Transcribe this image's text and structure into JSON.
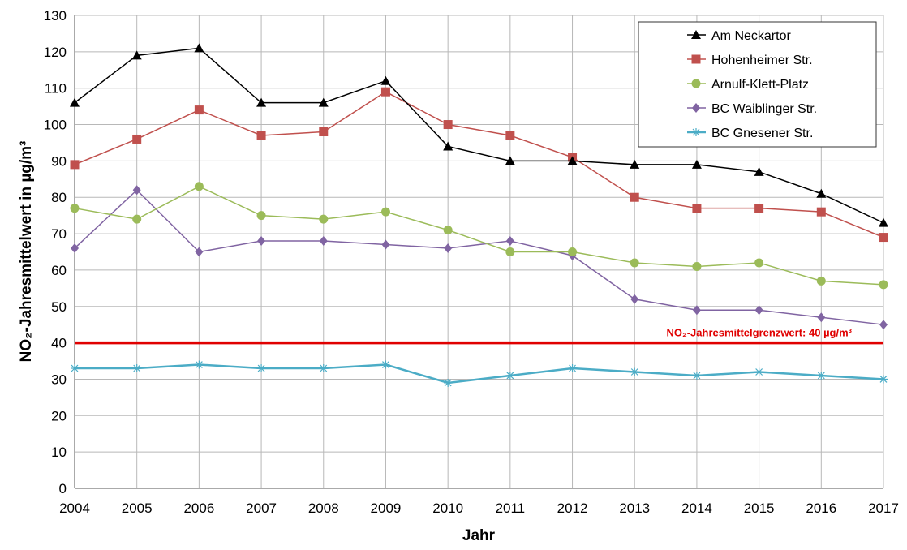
{
  "chart_data": {
    "type": "line",
    "title": "",
    "xlabel": "Jahr",
    "ylabel": "NO₂-Jahresmittelwert  in µg/m³",
    "x": [
      2004,
      2005,
      2006,
      2007,
      2008,
      2009,
      2010,
      2011,
      2012,
      2013,
      2014,
      2015,
      2016,
      2017
    ],
    "ylim": [
      0,
      130
    ],
    "yticks": [
      0,
      10,
      20,
      30,
      40,
      50,
      60,
      70,
      80,
      90,
      100,
      110,
      120,
      130
    ],
    "grid": true,
    "legend_position": "top-right",
    "series": [
      {
        "name": "Am Neckartor",
        "color": "#000000",
        "marker": "triangle",
        "values": [
          106,
          119,
          121,
          106,
          106,
          112,
          94,
          90,
          90,
          89,
          89,
          87,
          81,
          73
        ]
      },
      {
        "name": "Hohenheimer Str.",
        "color": "#c0504d",
        "marker": "square",
        "values": [
          89,
          96,
          104,
          97,
          98,
          109,
          100,
          97,
          91,
          80,
          77,
          77,
          76,
          69
        ]
      },
      {
        "name": "Arnulf-Klett-Platz",
        "color": "#9bbb59",
        "marker": "circle",
        "values": [
          77,
          74,
          83,
          75,
          74,
          76,
          71,
          65,
          65,
          62,
          61,
          62,
          57,
          56
        ]
      },
      {
        "name": "BC Waiblinger Str.",
        "color": "#8064a2",
        "marker": "diamond",
        "values": [
          66,
          82,
          65,
          68,
          68,
          67,
          66,
          68,
          64,
          52,
          49,
          49,
          47,
          45
        ]
      },
      {
        "name": "BC Gnesener Str.",
        "color": "#4bacc6",
        "marker": "star",
        "values": [
          33,
          33,
          34,
          33,
          33,
          34,
          29,
          31,
          33,
          32,
          31,
          32,
          31,
          30
        ]
      }
    ],
    "reference_line": {
      "value": 40,
      "color": "#e00000",
      "label": "NO₂-Jahresmittelgrenzwert:  40 µg/m³"
    }
  }
}
